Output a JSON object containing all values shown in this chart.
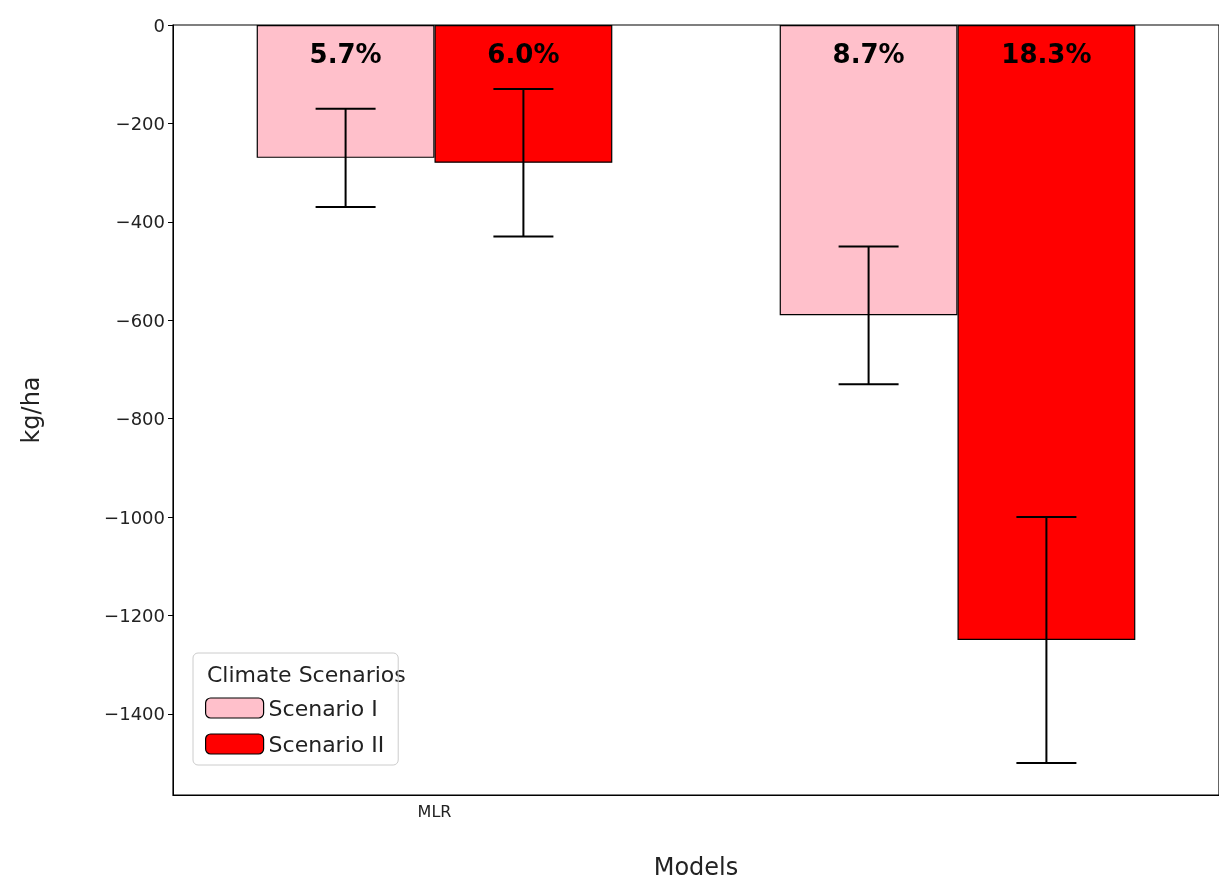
{
  "chart_data": {
    "type": "bar",
    "xlabel": "Models",
    "ylabel": "kg/ha",
    "legend_title": "Climate Scenarios",
    "categories": [
      "MLR",
      null
    ],
    "series": [
      {
        "name": "Scenario I",
        "color": "#ffc0cb",
        "values": [
          -270,
          -590
        ],
        "errors": [
          100,
          140
        ]
      },
      {
        "name": "Scenario II",
        "color": "#ff0000",
        "values": [
          -280,
          -1250
        ],
        "errors": [
          150,
          250
        ]
      }
    ],
    "annotations": [
      "5.7%",
      "8.7%",
      "6.0%",
      "18.3%"
    ],
    "ylim": [
      -1565,
      0
    ],
    "yticks": [
      0,
      -200,
      -400,
      -600,
      -800,
      -1000,
      -1200,
      -1400
    ],
    "grid": false,
    "legend": "bottom left"
  }
}
